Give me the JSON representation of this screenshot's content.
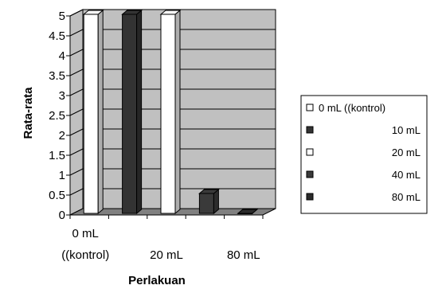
{
  "chart_data": {
    "type": "bar",
    "title": "",
    "xlabel": "Perlakuan",
    "ylabel": "Rata-rata",
    "ylim": [
      0,
      5
    ],
    "yticks": [
      "0",
      "0.5",
      "1",
      "1.5",
      "2",
      "2.5",
      "3",
      "3.5",
      "4",
      "4.5",
      "5"
    ],
    "grid": true,
    "legend_position": "right",
    "categories": [
      "0 mL ((kontrol)",
      "10 mL",
      "20 mL",
      "40 mL",
      "80 mL"
    ],
    "x_tick_labels": [
      {
        "lines": [
          "0 mL",
          "((kontrol)"
        ]
      },
      {
        "lines": [
          "20 mL"
        ]
      },
      {
        "lines": [
          "80 mL"
        ]
      }
    ],
    "series": [
      {
        "name": "0 mL ((kontrol)",
        "color": "#ffffff",
        "values": [
          5,
          null,
          null,
          null,
          null
        ]
      },
      {
        "name": "10 mL",
        "color": "#333333",
        "values": [
          null,
          5,
          null,
          null,
          null
        ]
      },
      {
        "name": "20 mL",
        "color": "#ffffff",
        "values": [
          null,
          null,
          5,
          null,
          null
        ]
      },
      {
        "name": "40 mL",
        "color": "#3a3a3a",
        "values": [
          null,
          null,
          null,
          0.5,
          null
        ]
      },
      {
        "name": "80 mL",
        "color": "#2b2b2b",
        "values": [
          null,
          null,
          null,
          null,
          0
        ]
      }
    ],
    "colors": {
      "plot_wall": "#c0c0c0",
      "plot_floor": "#808080",
      "gridline": "#000000"
    }
  }
}
